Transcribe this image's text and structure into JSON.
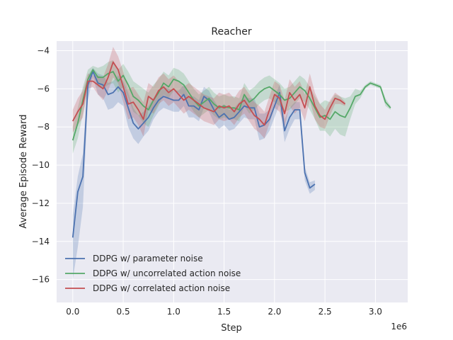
{
  "chart_data": {
    "type": "line",
    "title": "Reacher",
    "xlabel": "Step",
    "ylabel": "Average Episode Reward",
    "x_offset_label": "1e6",
    "xlim": [
      -0.16,
      3.32
    ],
    "ylim": [
      -17.2,
      -3.5
    ],
    "xticks": [
      0.0,
      0.5,
      1.0,
      1.5,
      2.0,
      2.5,
      3.0
    ],
    "xtick_labels": [
      "0.0",
      "0.5",
      "1.0",
      "1.5",
      "2.0",
      "2.5",
      "3.0"
    ],
    "yticks": [
      -16,
      -14,
      -12,
      -10,
      -8,
      -6,
      -4
    ],
    "ytick_labels": [
      "−16",
      "−14",
      "−12",
      "−10",
      "−8",
      "−6",
      "−4"
    ],
    "grid": true,
    "legend_position": "bottom-left",
    "series": [
      {
        "name": "DDPG w/ parameter noise",
        "color": "#4c72b0",
        "x": [
          0.0,
          0.05,
          0.1,
          0.15,
          0.2,
          0.25,
          0.3,
          0.35,
          0.4,
          0.45,
          0.5,
          0.55,
          0.6,
          0.65,
          0.7,
          0.75,
          0.8,
          0.85,
          0.9,
          0.95,
          1.0,
          1.05,
          1.1,
          1.15,
          1.2,
          1.25,
          1.3,
          1.35,
          1.4,
          1.45,
          1.5,
          1.55,
          1.6,
          1.65,
          1.7,
          1.75,
          1.8,
          1.85,
          1.9,
          1.95,
          2.0,
          2.05,
          2.1,
          2.15,
          2.2,
          2.25,
          2.3,
          2.35,
          2.4
        ],
        "y": [
          -13.8,
          -11.4,
          -10.6,
          -5.8,
          -5.1,
          -5.7,
          -5.8,
          -6.3,
          -6.2,
          -5.9,
          -6.2,
          -7.0,
          -7.8,
          -8.1,
          -7.8,
          -7.5,
          -7.0,
          -6.6,
          -6.4,
          -6.5,
          -6.6,
          -6.6,
          -6.3,
          -6.9,
          -6.9,
          -7.1,
          -6.4,
          -6.6,
          -7.1,
          -7.5,
          -7.3,
          -7.6,
          -7.5,
          -7.2,
          -6.9,
          -7.0,
          -7.0,
          -8.0,
          -7.9,
          -7.6,
          -6.9,
          -6.2,
          -8.2,
          -7.5,
          -7.1,
          -7.1,
          -10.4,
          -11.2,
          -11.0
        ],
        "band_upper": [
          -12.6,
          -10.6,
          -9.4,
          -5.3,
          -4.9,
          -5.2,
          -5.3,
          -5.7,
          -5.6,
          -5.3,
          -5.6,
          -6.2,
          -7.0,
          -7.4,
          -7.2,
          -6.9,
          -6.5,
          -6.1,
          -5.9,
          -6.0,
          -6.1,
          -6.1,
          -5.8,
          -6.4,
          -6.4,
          -6.6,
          -5.9,
          -6.1,
          -6.6,
          -7.0,
          -6.8,
          -7.1,
          -7.0,
          -6.7,
          -6.4,
          -6.5,
          -6.5,
          -7.3,
          -7.3,
          -7.1,
          -6.4,
          -5.8,
          -7.6,
          -7.0,
          -6.7,
          -6.7,
          -10.1,
          -10.9,
          -10.8
        ],
        "band_lower": [
          -16.0,
          -14.3,
          -12.2,
          -6.6,
          -5.4,
          -6.3,
          -6.5,
          -7.1,
          -7.0,
          -6.7,
          -6.9,
          -8.0,
          -8.6,
          -8.9,
          -8.5,
          -8.2,
          -7.6,
          -7.2,
          -7.0,
          -7.1,
          -7.2,
          -7.2,
          -6.9,
          -7.5,
          -7.5,
          -7.7,
          -7.0,
          -7.2,
          -7.8,
          -8.1,
          -7.9,
          -8.2,
          -8.1,
          -7.8,
          -7.5,
          -7.6,
          -7.6,
          -8.7,
          -8.6,
          -8.2,
          -7.5,
          -6.8,
          -8.8,
          -8.1,
          -7.6,
          -7.6,
          -10.8,
          -11.5,
          -11.3
        ]
      },
      {
        "name": "DDPG w/ uncorrelated action noise",
        "color": "#55a868",
        "x": [
          0.0,
          0.05,
          0.1,
          0.15,
          0.2,
          0.25,
          0.3,
          0.35,
          0.4,
          0.45,
          0.5,
          0.55,
          0.6,
          0.65,
          0.7,
          0.75,
          0.8,
          0.85,
          0.9,
          0.95,
          1.0,
          1.05,
          1.1,
          1.15,
          1.2,
          1.25,
          1.3,
          1.35,
          1.4,
          1.45,
          1.5,
          1.55,
          1.6,
          1.65,
          1.7,
          1.75,
          1.8,
          1.85,
          1.9,
          1.95,
          2.0,
          2.05,
          2.1,
          2.15,
          2.2,
          2.25,
          2.3,
          2.35,
          2.4,
          2.45,
          2.5,
          2.55,
          2.6,
          2.65,
          2.7,
          2.75,
          2.8,
          2.85,
          2.9,
          2.95,
          3.0,
          3.05,
          3.1,
          3.15
        ],
        "y": [
          -8.7,
          -7.8,
          -6.6,
          -5.5,
          -5.0,
          -5.4,
          -5.4,
          -5.2,
          -5.1,
          -5.6,
          -5.3,
          -5.8,
          -6.4,
          -6.6,
          -6.9,
          -7.1,
          -6.6,
          -6.2,
          -5.7,
          -5.9,
          -5.5,
          -5.6,
          -5.8,
          -6.2,
          -6.6,
          -6.9,
          -6.7,
          -6.5,
          -6.8,
          -7.0,
          -6.9,
          -7.0,
          -7.0,
          -7.1,
          -6.3,
          -6.7,
          -6.5,
          -6.2,
          -6.0,
          -5.9,
          -6.1,
          -6.3,
          -6.6,
          -6.5,
          -6.2,
          -5.9,
          -6.1,
          -6.5,
          -7.0,
          -7.5,
          -7.4,
          -7.6,
          -7.2,
          -7.4,
          -7.5,
          -7.0,
          -6.4,
          -6.3,
          -5.9,
          -5.7,
          -5.8,
          -5.9,
          -6.7,
          -7.0
        ],
        "band_upper": [
          -8.0,
          -7.0,
          -5.9,
          -5.0,
          -4.8,
          -4.9,
          -4.8,
          -4.6,
          -4.5,
          -5.0,
          -4.7,
          -5.1,
          -5.6,
          -5.8,
          -6.0,
          -6.2,
          -5.8,
          -5.5,
          -5.1,
          -5.3,
          -4.9,
          -5.0,
          -5.2,
          -5.6,
          -6.0,
          -6.3,
          -6.1,
          -5.9,
          -6.2,
          -6.4,
          -6.3,
          -6.4,
          -6.4,
          -6.5,
          -5.7,
          -6.1,
          -5.9,
          -5.6,
          -5.4,
          -5.3,
          -5.5,
          -5.7,
          -6.0,
          -5.9,
          -5.6,
          -5.3,
          -5.5,
          -5.9,
          -6.4,
          -6.8,
          -6.6,
          -6.7,
          -6.3,
          -6.4,
          -6.5,
          -6.4,
          -6.0,
          -6.1,
          -5.8,
          -5.6,
          -5.7,
          -5.8,
          -6.5,
          -6.9
        ],
        "band_lower": [
          -9.4,
          -8.6,
          -7.3,
          -6.0,
          -5.2,
          -5.9,
          -6.0,
          -5.8,
          -5.7,
          -6.2,
          -5.9,
          -6.5,
          -7.2,
          -7.4,
          -7.8,
          -8.0,
          -7.4,
          -6.9,
          -6.3,
          -6.5,
          -6.1,
          -6.2,
          -6.4,
          -6.8,
          -7.2,
          -7.5,
          -7.3,
          -7.1,
          -7.4,
          -7.6,
          -7.5,
          -7.6,
          -7.6,
          -7.7,
          -6.9,
          -7.3,
          -7.1,
          -6.8,
          -6.6,
          -6.5,
          -6.7,
          -6.9,
          -7.2,
          -7.1,
          -6.8,
          -6.5,
          -6.7,
          -7.1,
          -7.6,
          -8.2,
          -8.2,
          -8.5,
          -8.1,
          -8.4,
          -8.5,
          -7.6,
          -6.8,
          -6.5,
          -6.0,
          -5.8,
          -5.9,
          -6.0,
          -6.9,
          -7.1
        ]
      },
      {
        "name": "DDPG w/ correlated action noise",
        "color": "#c44e52",
        "x": [
          0.0,
          0.05,
          0.1,
          0.15,
          0.2,
          0.25,
          0.3,
          0.35,
          0.4,
          0.45,
          0.5,
          0.55,
          0.6,
          0.65,
          0.7,
          0.75,
          0.8,
          0.85,
          0.9,
          0.95,
          1.0,
          1.05,
          1.1,
          1.15,
          1.2,
          1.25,
          1.3,
          1.35,
          1.4,
          1.45,
          1.5,
          1.55,
          1.6,
          1.65,
          1.7,
          1.75,
          1.8,
          1.85,
          1.9,
          1.95,
          2.0,
          2.05,
          2.1,
          2.15,
          2.2,
          2.25,
          2.3,
          2.35,
          2.4,
          2.45,
          2.5,
          2.55,
          2.6,
          2.65,
          2.7
        ],
        "y": [
          -7.7,
          -7.2,
          -6.8,
          -5.6,
          -5.6,
          -5.8,
          -6.0,
          -5.4,
          -4.6,
          -5.0,
          -5.9,
          -6.8,
          -6.7,
          -7.1,
          -7.6,
          -6.4,
          -6.6,
          -6.1,
          -5.9,
          -6.2,
          -6.0,
          -6.3,
          -6.6,
          -6.4,
          -6.6,
          -6.8,
          -7.0,
          -7.1,
          -7.2,
          -6.9,
          -7.0,
          -6.9,
          -7.2,
          -6.8,
          -6.6,
          -7.0,
          -7.4,
          -7.6,
          -7.9,
          -7.1,
          -6.3,
          -6.5,
          -7.3,
          -6.2,
          -6.6,
          -6.3,
          -7.0,
          -5.9,
          -6.9,
          -7.4,
          -7.6,
          -7.0,
          -6.5,
          -6.6,
          -6.8
        ],
        "band_upper": [
          -7.1,
          -6.5,
          -6.1,
          -5.2,
          -5.3,
          -5.3,
          -5.4,
          -4.7,
          -3.8,
          -4.3,
          -5.1,
          -6.0,
          -5.9,
          -6.3,
          -6.7,
          -5.7,
          -5.9,
          -5.4,
          -5.2,
          -5.5,
          -5.3,
          -5.6,
          -5.9,
          -5.7,
          -5.9,
          -6.1,
          -6.3,
          -6.4,
          -6.5,
          -6.2,
          -6.3,
          -6.2,
          -6.5,
          -6.1,
          -5.9,
          -6.3,
          -6.7,
          -6.9,
          -7.2,
          -6.4,
          -5.6,
          -5.8,
          -6.6,
          -5.5,
          -5.9,
          -5.6,
          -6.3,
          -5.2,
          -6.2,
          -6.8,
          -7.1,
          -6.6,
          -6.2,
          -6.4,
          -6.7
        ],
        "band_lower": [
          -8.3,
          -7.9,
          -7.5,
          -6.0,
          -5.9,
          -6.3,
          -6.6,
          -6.1,
          -5.4,
          -5.7,
          -6.7,
          -7.6,
          -7.5,
          -7.9,
          -8.5,
          -7.1,
          -7.3,
          -6.8,
          -6.6,
          -6.9,
          -6.7,
          -7.0,
          -7.3,
          -7.1,
          -7.3,
          -7.5,
          -7.7,
          -7.8,
          -7.9,
          -7.6,
          -7.7,
          -7.6,
          -7.9,
          -7.5,
          -7.3,
          -7.7,
          -8.1,
          -8.3,
          -8.6,
          -7.8,
          -7.0,
          -7.2,
          -8.0,
          -6.9,
          -7.3,
          -7.0,
          -7.7,
          -6.6,
          -7.6,
          -8.0,
          -8.1,
          -7.4,
          -6.8,
          -6.8,
          -6.9
        ]
      }
    ]
  }
}
